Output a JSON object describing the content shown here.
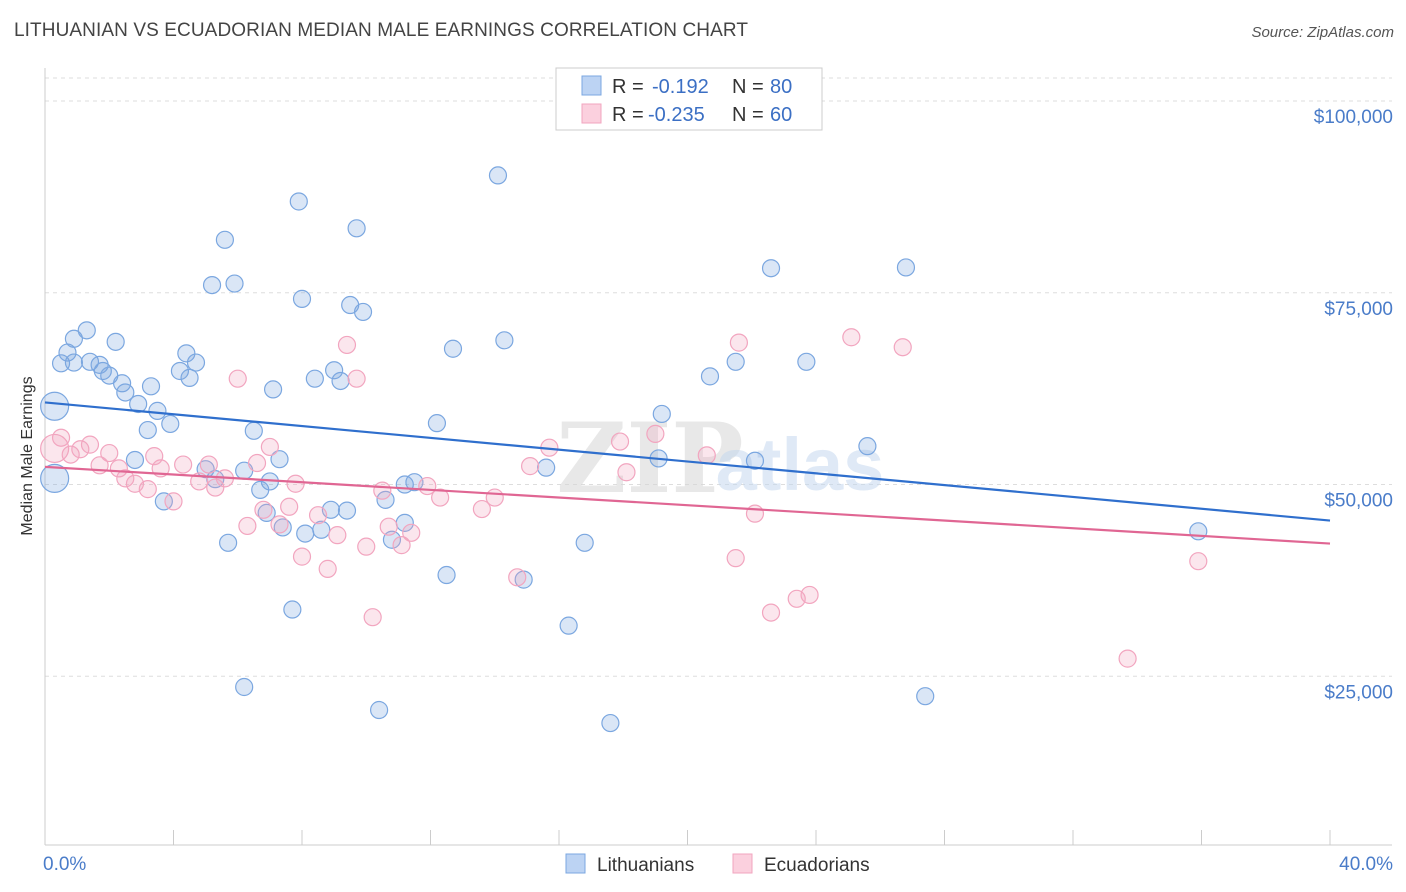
{
  "header": {
    "title": "LITHUANIAN VS ECUADORIAN MEDIAN MALE EARNINGS CORRELATION CHART",
    "source": "Source: ZipAtlas.com"
  },
  "watermark": {
    "zip": "ZIP",
    "atlas": "atlas"
  },
  "legend": {
    "items": [
      {
        "r_label": "R =",
        "r_value": "-0.192",
        "n_label": "N =",
        "n_value": "80"
      },
      {
        "r_label": "R =",
        "r_value": "-0.235",
        "n_label": "N =",
        "n_value": "60"
      }
    ]
  },
  "chart_data": {
    "type": "scatter",
    "title": "LITHUANIAN VS ECUADORIAN MEDIAN MALE EARNINGS CORRELATION CHART",
    "xlabel": "",
    "ylabel": "Median Male Earnings",
    "xlim": [
      0,
      40
    ],
    "ylim": [
      3000,
      103000
    ],
    "x_tick_labels": [
      "0.0%",
      "40.0%"
    ],
    "y_ticks": [
      {
        "value": 25000,
        "label": "$25,000"
      },
      {
        "value": 50000,
        "label": "$50,000"
      },
      {
        "value": 75000,
        "label": "$75,000"
      },
      {
        "value": 100000,
        "label": "$100,000"
      }
    ],
    "grid": true,
    "legend_position": "top-center",
    "series": [
      {
        "name": "Lithuanians",
        "color": "#7ba7e0",
        "line_color": "#2f6fcd",
        "r": -0.192,
        "n": 80,
        "trend": {
          "x": [
            0,
            40
          ],
          "y": [
            60700,
            45300
          ]
        },
        "points": [
          [
            0.3,
            50800
          ],
          [
            0.3,
            60200
          ],
          [
            0.5,
            65800
          ],
          [
            0.7,
            67200
          ],
          [
            0.9,
            69000
          ],
          [
            1.3,
            70100
          ],
          [
            0.9,
            65900
          ],
          [
            1.4,
            66000
          ],
          [
            1.7,
            65600
          ],
          [
            1.8,
            64800
          ],
          [
            2.0,
            64200
          ],
          [
            2.2,
            68600
          ],
          [
            2.4,
            63200
          ],
          [
            2.5,
            62000
          ],
          [
            2.9,
            60500
          ],
          [
            3.3,
            62800
          ],
          [
            3.5,
            59600
          ],
          [
            3.2,
            57100
          ],
          [
            3.9,
            57900
          ],
          [
            2.8,
            53200
          ],
          [
            3.7,
            47800
          ],
          [
            4.2,
            64800
          ],
          [
            4.4,
            67100
          ],
          [
            4.5,
            63900
          ],
          [
            4.7,
            65900
          ],
          [
            5.0,
            52000
          ],
          [
            5.2,
            76000
          ],
          [
            5.3,
            50700
          ],
          [
            5.6,
            81900
          ],
          [
            5.9,
            76200
          ],
          [
            5.7,
            42400
          ],
          [
            6.2,
            23600
          ],
          [
            6.2,
            51800
          ],
          [
            6.5,
            57000
          ],
          [
            6.7,
            49300
          ],
          [
            6.9,
            46300
          ],
          [
            7.0,
            50400
          ],
          [
            7.1,
            62400
          ],
          [
            7.3,
            53300
          ],
          [
            7.4,
            44400
          ],
          [
            7.7,
            33700
          ],
          [
            7.9,
            86900
          ],
          [
            8.0,
            74200
          ],
          [
            8.1,
            43600
          ],
          [
            8.4,
            63800
          ],
          [
            8.6,
            44100
          ],
          [
            8.9,
            46700
          ],
          [
            9.0,
            64900
          ],
          [
            9.2,
            63500
          ],
          [
            9.4,
            46600
          ],
          [
            9.5,
            73400
          ],
          [
            9.7,
            83400
          ],
          [
            9.9,
            72500
          ],
          [
            10.4,
            20600
          ],
          [
            10.6,
            48000
          ],
          [
            10.8,
            42800
          ],
          [
            11.2,
            50000
          ],
          [
            11.2,
            45000
          ],
          [
            11.5,
            50300
          ],
          [
            12.2,
            58000
          ],
          [
            12.5,
            38200
          ],
          [
            12.7,
            67700
          ],
          [
            14.1,
            90300
          ],
          [
            14.3,
            68800
          ],
          [
            14.9,
            37600
          ],
          [
            15.6,
            52200
          ],
          [
            16.3,
            31600
          ],
          [
            16.8,
            42400
          ],
          [
            17.6,
            18900
          ],
          [
            19.1,
            53400
          ],
          [
            19.2,
            59200
          ],
          [
            20.7,
            64100
          ],
          [
            21.5,
            66000
          ],
          [
            22.1,
            53100
          ],
          [
            22.6,
            78200
          ],
          [
            23.7,
            66000
          ],
          [
            25.6,
            55000
          ],
          [
            26.8,
            78300
          ],
          [
            27.4,
            22400
          ],
          [
            35.9,
            43900
          ]
        ]
      },
      {
        "name": "Ecuadorians",
        "color": "#f2a5bf",
        "line_color": "#e06693",
        "r": -0.235,
        "n": 60,
        "trend": {
          "x": [
            0,
            40
          ],
          "y": [
            52300,
            42300
          ]
        },
        "points": [
          [
            0.3,
            54700
          ],
          [
            0.5,
            56100
          ],
          [
            0.8,
            53900
          ],
          [
            1.1,
            54600
          ],
          [
            1.4,
            55200
          ],
          [
            1.7,
            52500
          ],
          [
            2.0,
            54100
          ],
          [
            2.3,
            52100
          ],
          [
            2.5,
            50800
          ],
          [
            2.8,
            50100
          ],
          [
            3.2,
            49400
          ],
          [
            3.4,
            53700
          ],
          [
            3.6,
            52100
          ],
          [
            4.0,
            47800
          ],
          [
            4.3,
            52600
          ],
          [
            4.8,
            50400
          ],
          [
            5.1,
            52600
          ],
          [
            5.3,
            49600
          ],
          [
            5.6,
            50800
          ],
          [
            6.0,
            63800
          ],
          [
            6.3,
            44600
          ],
          [
            6.6,
            52800
          ],
          [
            6.8,
            46700
          ],
          [
            7.0,
            54900
          ],
          [
            7.3,
            44800
          ],
          [
            7.6,
            47100
          ],
          [
            7.8,
            50100
          ],
          [
            8.0,
            40600
          ],
          [
            8.5,
            46000
          ],
          [
            8.8,
            39000
          ],
          [
            9.1,
            43400
          ],
          [
            9.4,
            68200
          ],
          [
            9.7,
            63800
          ],
          [
            10.0,
            41900
          ],
          [
            10.2,
            32700
          ],
          [
            10.5,
            49200
          ],
          [
            10.7,
            44500
          ],
          [
            11.1,
            42100
          ],
          [
            11.4,
            43700
          ],
          [
            11.9,
            49800
          ],
          [
            12.3,
            48300
          ],
          [
            13.6,
            46800
          ],
          [
            14.0,
            48300
          ],
          [
            14.7,
            37900
          ],
          [
            15.1,
            52400
          ],
          [
            15.7,
            54800
          ],
          [
            17.9,
            55600
          ],
          [
            18.1,
            51600
          ],
          [
            19.0,
            56600
          ],
          [
            20.6,
            53800
          ],
          [
            21.5,
            40400
          ],
          [
            21.6,
            68500
          ],
          [
            22.1,
            46200
          ],
          [
            22.6,
            33300
          ],
          [
            23.4,
            35100
          ],
          [
            23.8,
            35600
          ],
          [
            25.1,
            69200
          ],
          [
            26.7,
            67900
          ],
          [
            33.7,
            27300
          ],
          [
            35.9,
            40000
          ]
        ]
      }
    ]
  }
}
